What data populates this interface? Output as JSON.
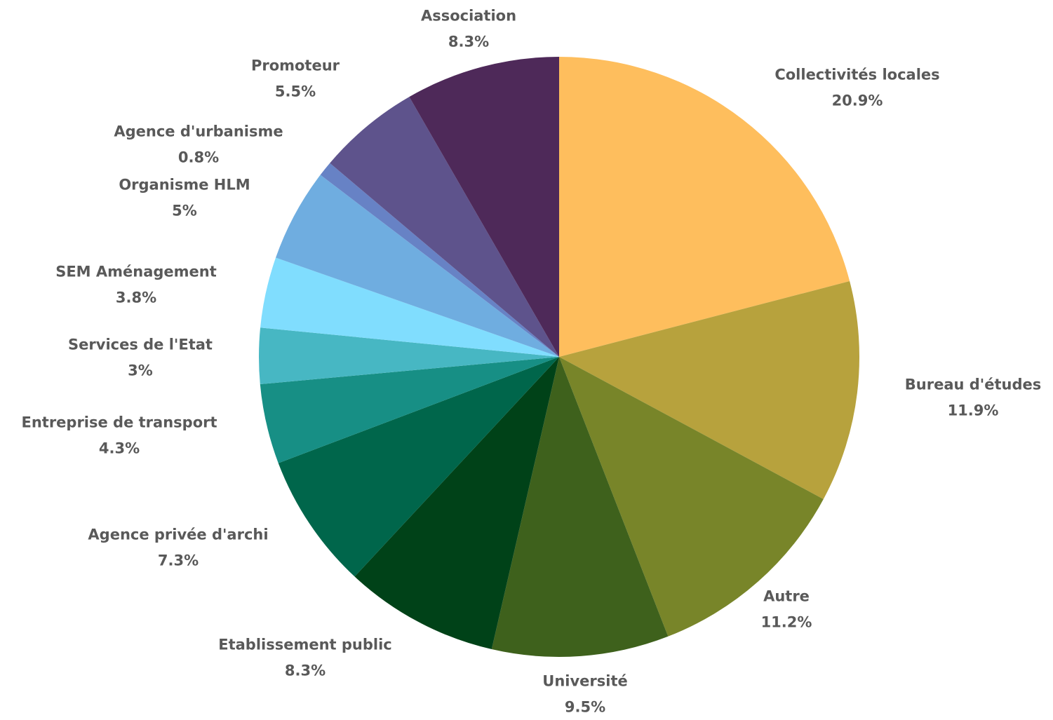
{
  "chart_data": {
    "type": "pie",
    "title": "",
    "start_angle_deg": 0,
    "direction": "clockwise",
    "slices": [
      {
        "label": "Collectivités locales",
        "value": 20.9,
        "value_label": "20.9%",
        "color": "#FEBE5D"
      },
      {
        "label": "Bureau d'études",
        "value": 11.9,
        "value_label": "11.9%",
        "color": "#B7A23D"
      },
      {
        "label": "Autre",
        "value": 11.2,
        "value_label": "11.2%",
        "color": "#788529"
      },
      {
        "label": "Université",
        "value": 9.5,
        "value_label": "9.5%",
        "color": "#3E611C"
      },
      {
        "label": "Etablissement public",
        "value": 8.3,
        "value_label": "8.3%",
        "color": "#004218"
      },
      {
        "label": "Agence privée d'archi",
        "value": 7.3,
        "value_label": "7.3%",
        "color": "#00664B"
      },
      {
        "label": "Entreprise de transport",
        "value": 4.3,
        "value_label": "4.3%",
        "color": "#178F85"
      },
      {
        "label": "Services de l'Etat",
        "value": 3,
        "value_label": "3%",
        "color": "#47B7C3"
      },
      {
        "label": "SEM Aménagement",
        "value": 3.8,
        "value_label": "3.8%",
        "color": "#80DDFE"
      },
      {
        "label": "Organisme HLM",
        "value": 5,
        "value_label": "5%",
        "color": "#6FADE0"
      },
      {
        "label": "Agence d'urbanisme",
        "value": 0.8,
        "value_label": "0.8%",
        "color": "#6782C5"
      },
      {
        "label": "Promoteur",
        "value": 5.5,
        "value_label": "5.5%",
        "color": "#5E538C"
      },
      {
        "label": "Association",
        "value": 8.3,
        "value_label": "8.3%",
        "color": "#4E2959"
      }
    ]
  }
}
